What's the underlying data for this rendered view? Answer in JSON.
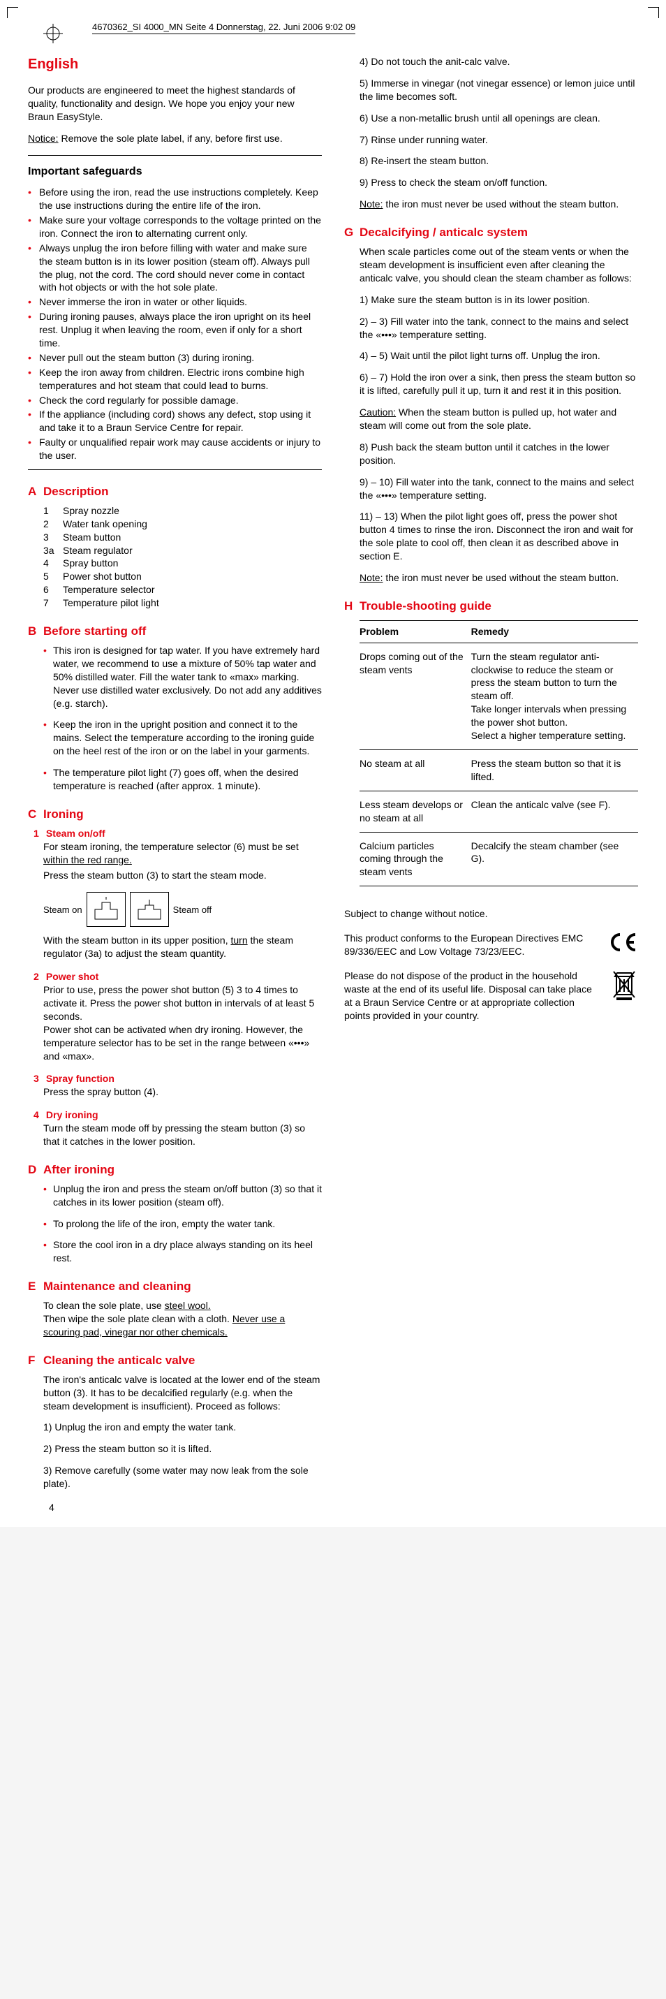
{
  "file_header": "4670362_SI 4000_MN  Seite 4  Donnerstag, 22. Juni 2006  9:02 09",
  "title": "English",
  "intro": "Our products are engineered to meet the highest standards of quality, functionality and design. We hope you enjoy your new Braun EasyStyle.",
  "notice_label": "Notice:",
  "notice_text": " Remove the sole plate label, if any, before first use.",
  "safeguards_title": "Important safeguards",
  "safeguards": [
    "Before using the iron, read the use instructions completely. Keep the use instructions during the entire life of the iron.",
    "Make sure your voltage corresponds to the voltage printed on the iron. Connect the iron to alternating current only.",
    "Always unplug the iron before filling with water and make sure the steam button is in its lower position (steam off). Always pull the plug, not the cord. The cord should never come in contact with hot objects or with the hot sole plate.",
    "Never immerse the iron in water or other liquids.",
    "During ironing pauses, always place the iron upright on its heel rest. Unplug it when leaving the room, even if only for a short time.",
    "Never pull out the steam button (3) during ironing.",
    "Keep the iron away from children. Electric irons combine high temperatures and hot steam that could lead to burns.",
    "Check the cord regularly for possible damage.",
    "If the appliance (including cord) shows any defect, stop using it and take it to a Braun Service Centre for repair.",
    "Faulty or unqualified repair work may cause accidents or injury to the user."
  ],
  "A": {
    "letter": "A",
    "title": "Description",
    "items": [
      {
        "n": "1",
        "t": "Spray nozzle"
      },
      {
        "n": "2",
        "t": "Water tank opening"
      },
      {
        "n": "3",
        "t": "Steam button"
      },
      {
        "n": "3a",
        "t": "Steam regulator"
      },
      {
        "n": "4",
        "t": "Spray button"
      },
      {
        "n": "5",
        "t": "Power shot button"
      },
      {
        "n": "6",
        "t": "Temperature selector"
      },
      {
        "n": "7",
        "t": "Temperature pilot light"
      }
    ]
  },
  "B": {
    "letter": "B",
    "title": "Before starting off",
    "items": [
      "This iron is designed for tap water. If you have extremely hard water, we recommend to use a mixture of 50% tap water and 50% distilled water. Fill the water tank to «max» marking. Never use distilled water exclusively. Do not add any additives (e.g. starch).",
      "Keep the iron in the upright position and connect it to the mains. Select the temperature according to the ironing guide on the heel rest of the iron or on the label in your garments.",
      "The temperature pilot light (7) goes off, when the desired temperature is reached (after approx. 1 minute)."
    ]
  },
  "C": {
    "letter": "C",
    "title": "Ironing",
    "c1_n": "1",
    "c1_t": "Steam on/off",
    "c1_body1": "For steam ironing, the temperature selector (6) must be set ",
    "c1_body1u": "within the red range.",
    "c1_body2": "Press the steam button (3) to start the steam mode.",
    "steam_on": "Steam on",
    "steam_off": "Steam off",
    "c1_body3a": "With the steam button in its upper position, ",
    "c1_body3u": "turn",
    "c1_body3b": " the steam regulator (3a) to adjust the steam quantity.",
    "c2_n": "2",
    "c2_t": "Power shot",
    "c2_body": "Prior to use, press the power shot button (5) 3 to 4 times to activate it. Press the power shot button in intervals of at least 5 seconds.\nPower shot can be activated when dry ironing. However, the temperature selector has to be set in the range between «•••» and «max».",
    "c3_n": "3",
    "c3_t": "Spray function",
    "c3_body": "Press the spray button (4).",
    "c4_n": "4",
    "c4_t": "Dry ironing",
    "c4_body": "Turn the steam mode off by pressing the steam button (3) so that it catches in the lower position."
  },
  "D": {
    "letter": "D",
    "title": "After ironing",
    "items": [
      "Unplug the iron and press the steam on/off button (3) so that it catches in its lower position (steam off).",
      "To prolong the life of the iron, empty the water tank.",
      "Store the cool iron in a dry place always standing on its heel rest."
    ]
  },
  "E": {
    "letter": "E",
    "title": "Maintenance and cleaning",
    "body1": "To clean the sole plate, use ",
    "body1u": "steel wool.",
    "body2": "Then wipe the sole plate clean with a cloth. ",
    "body2u": "Never use a scouring pad, vinegar nor other chemicals."
  },
  "F": {
    "letter": "F",
    "title": "Cleaning the anticalc valve",
    "intro": "The iron's anticalc valve is located at the lower end of the steam button (3). It has to be decalcified regularly (e.g. when the steam development is insufficient). Proceed as follows:",
    "s1": "1) Unplug the iron and empty the water tank.",
    "s2": "2) Press the steam button so it is lifted.",
    "s3": "3) Remove carefully (some water may now leak from the sole plate).",
    "s4": "4) Do not touch the anit-calc valve.",
    "s5": "5) Immerse in vinegar (not vinegar essence) or lemon juice until the lime becomes soft.",
    "s6": "6) Use a non-metallic brush until all openings are clean.",
    "s7": "7) Rinse under running water.",
    "s8": "8) Re-insert the steam button.",
    "s9": "9) Press to check the steam on/off function.",
    "note_label": "Note:",
    "note": " the iron must never be used without the steam button."
  },
  "G": {
    "letter": "G",
    "title": "Decalcifying / anticalc system",
    "intro": "When scale particles come out of the steam vents or when the steam development is insufficient even after cleaning the anticalc valve, you should clean the steam chamber as follows:",
    "s1": "1) Make sure the steam button is in its lower position.",
    "s23": "2) – 3) Fill water into the tank, connect to the mains and select the «•••» temperature setting.",
    "s45": "4) – 5) Wait until the pilot light turns off. Unplug the iron.",
    "s67": "6) – 7) Hold the iron over a sink, then press the steam button so it is lifted, carefully pull it up, turn it and rest it in this position.",
    "caution_label": "Caution:",
    "caution": " When the steam button is pulled up, hot water and steam will come out from the sole plate.",
    "s8": "8) Push back the steam button until it catches in the lower position.",
    "s910": "9) – 10) Fill water into the tank, connect to the mains and select the «•••» temperature setting.",
    "s1113": "11) – 13) When the pilot light goes off, press the power shot button 4 times to rinse the iron. Disconnect the iron and wait for the sole plate to cool off, then clean it as described above in section E.",
    "note_label": "Note:",
    "note": " the iron must never be used without the steam button."
  },
  "H": {
    "letter": "H",
    "title": "Trouble-shooting guide",
    "col1": "Problem",
    "col2": "Remedy",
    "rows": [
      {
        "p": "Drops coming out of the steam vents",
        "r": "Turn the steam regulator anti-clockwise to reduce the steam or press the steam button to turn the steam off.\nTake longer intervals when pressing the power shot button.\nSelect a higher temperature setting."
      },
      {
        "p": "No steam at all",
        "r": "Press the steam button so that it is lifted."
      },
      {
        "p": "Less steam develops or no steam at all",
        "r": "Clean the anticalc valve (see F)."
      },
      {
        "p": "Calcium particles coming through the steam vents",
        "r": "Decalcify the steam chamber (see G)."
      }
    ]
  },
  "subject_to_change": "Subject to change without notice.",
  "compliance": "This product conforms to the European Directives EMC 89/336/EEC and Low Voltage 73/23/EEC.",
  "disposal": "Please do not dispose of the product in the household waste at the end of its useful life. Disposal can take place at a Braun Service Centre or at appropriate collection points provided in your country.",
  "page_num": "4"
}
